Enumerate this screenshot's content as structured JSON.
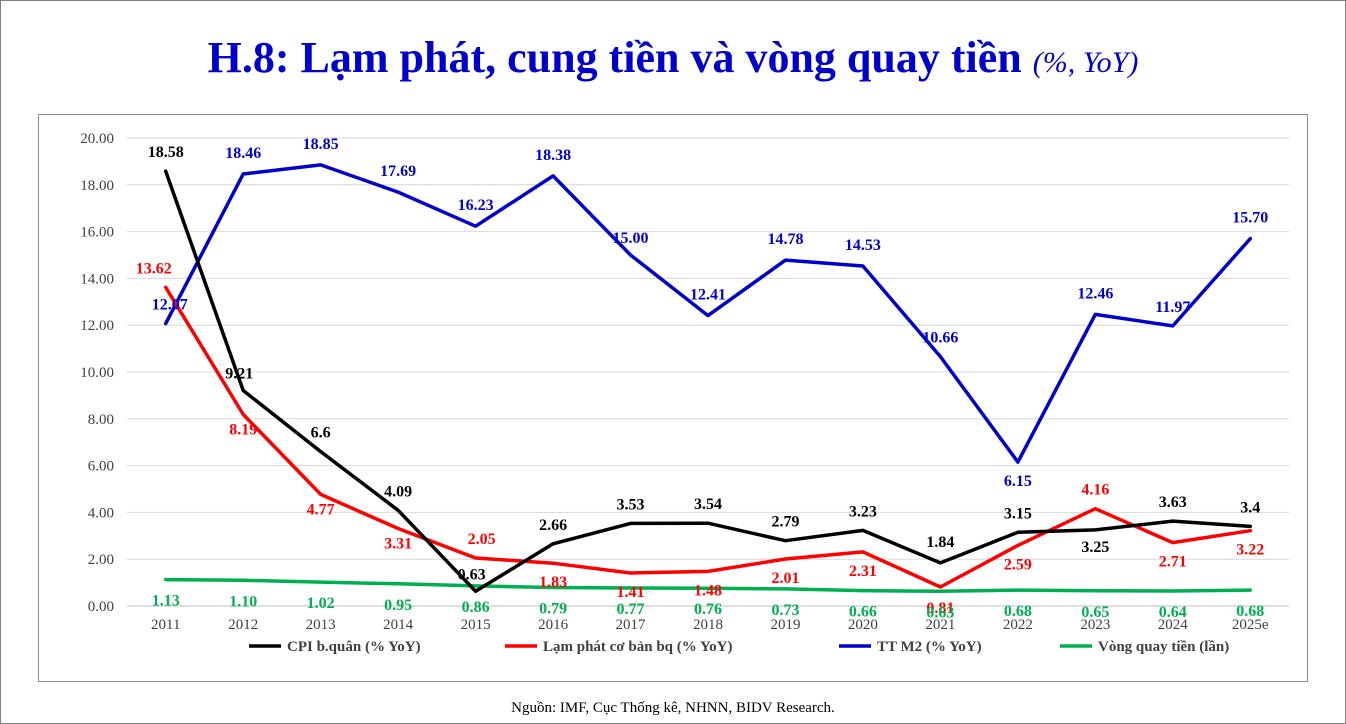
{
  "title": {
    "main": "H.8: Lạm phát, cung tiền và vòng quay tiền",
    "unit": "(%, YoY)"
  },
  "source": "Nguồn: IMF, Cục Thống kê, NHNN, BIDV Research.",
  "chart_data": {
    "type": "line",
    "categories": [
      "2011",
      "2012",
      "2013",
      "2014",
      "2015",
      "2016",
      "2017",
      "2018",
      "2019",
      "2020",
      "2021",
      "2022",
      "2023",
      "2024",
      "2025e"
    ],
    "ylim": [
      0,
      20
    ],
    "yticks": [
      "0.00",
      "2.00",
      "4.00",
      "6.00",
      "8.00",
      "10.00",
      "12.00",
      "14.00",
      "16.00",
      "18.00",
      "20.00"
    ],
    "grid": true,
    "legend_position": "bottom",
    "series": [
      {
        "name": "CPI b.quân (% YoY)",
        "color": "#000000",
        "values": [
          18.58,
          9.21,
          6.6,
          4.09,
          0.63,
          2.66,
          3.53,
          3.54,
          2.79,
          3.23,
          1.84,
          3.15,
          3.25,
          3.63,
          3.4
        ],
        "labels": [
          "18.58",
          "9.21",
          "6.6",
          "4.09",
          "0.63",
          "2.66",
          "3.53",
          "3.54",
          "2.79",
          "3.23",
          "1.84",
          "3.15",
          "3.25",
          "3.63",
          "3.4"
        ]
      },
      {
        "name": "Lạm phát cơ bản bq (% YoY)",
        "color": "#ff0000",
        "values": [
          13.62,
          8.19,
          4.77,
          3.31,
          2.05,
          1.83,
          1.41,
          1.48,
          2.01,
          2.31,
          0.81,
          2.59,
          4.16,
          2.71,
          3.22
        ],
        "labels": [
          "13.62",
          "8.19",
          "4.77",
          "3.31",
          "2.05",
          "1.83",
          "1.41",
          "1.48",
          "2.01",
          "2.31",
          "0.81",
          "2.59",
          "4.16",
          "2.71",
          "3.22"
        ]
      },
      {
        "name": "TT M2 (% YoY)",
        "color": "#0000cc",
        "values": [
          12.07,
          18.46,
          18.85,
          17.69,
          16.23,
          18.38,
          15.0,
          12.41,
          14.78,
          14.53,
          10.66,
          6.15,
          12.46,
          11.97,
          15.7
        ],
        "labels": [
          "12.07",
          "18.46",
          "18.85",
          "17.69",
          "16.23",
          "18.38",
          "15.00",
          "12.41",
          "14.78",
          "14.53",
          "10.66",
          "6.15",
          "12.46",
          "11.97",
          "15.70"
        ]
      },
      {
        "name": "Vòng quay tiền (lần)",
        "color": "#00b050",
        "values": [
          1.13,
          1.1,
          1.02,
          0.95,
          0.86,
          0.79,
          0.77,
          0.76,
          0.73,
          0.66,
          0.63,
          0.68,
          0.65,
          0.64,
          0.68
        ],
        "labels": [
          "1.13",
          "1.10",
          "1.02",
          "0.95",
          "0.86",
          "0.79",
          "0.77",
          "0.76",
          "0.73",
          "0.66",
          "0.63",
          "0.68",
          "0.65",
          "0.64",
          "0.68"
        ]
      }
    ]
  }
}
